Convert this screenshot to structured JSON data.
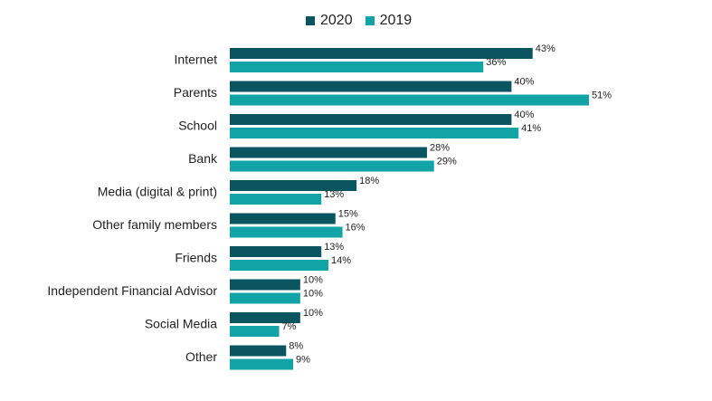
{
  "chart_data": {
    "type": "bar",
    "orientation": "horizontal",
    "categories": [
      "Internet",
      "Parents",
      "School",
      "Bank",
      "Media (digital & print)",
      "Other family members",
      "Friends",
      "Independent Financial Advisor",
      "Social Media",
      "Other"
    ],
    "series": [
      {
        "name": "2020",
        "color": "#0a5560",
        "values": [
          43,
          40,
          40,
          28,
          18,
          15,
          13,
          10,
          10,
          8
        ]
      },
      {
        "name": "2019",
        "color": "#11a3a6",
        "values": [
          36,
          51,
          41,
          29,
          13,
          16,
          14,
          10,
          7,
          9
        ]
      }
    ],
    "value_suffix": "%",
    "xlim": [
      0,
      51
    ],
    "grid": false,
    "legend_position": "top-center"
  }
}
